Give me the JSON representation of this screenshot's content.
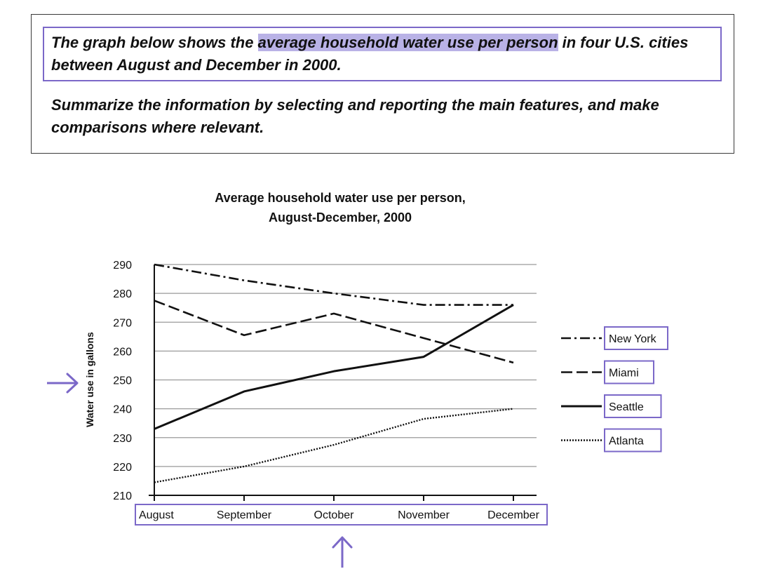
{
  "task": {
    "line1_pre": "The graph below shows the ",
    "line1_highlight": "average household water use per person",
    "line1_post": " in four U.S. cities between August and December in 2000.",
    "instruction": "Summarize the information by selecting and reporting the main features, and make comparisons where relevant."
  },
  "annotations": {
    "accent_color": "#7b68c8",
    "highlight_color": "#b9b2e6",
    "y_axis_arrow": "right-arrow-icon",
    "x_axis_arrow": "up-arrow-icon"
  },
  "chart_data": {
    "type": "line",
    "title_line1": "Average household water use per person,",
    "title_line2": "August-December, 2000",
    "xlabel": "",
    "ylabel": "Water use in gallons",
    "categories": [
      "August",
      "September",
      "October",
      "November",
      "December"
    ],
    "ylim": [
      210,
      290
    ],
    "yticks": [
      210,
      220,
      230,
      240,
      250,
      260,
      270,
      280,
      290
    ],
    "grid": true,
    "legend_position": "right",
    "series": [
      {
        "name": "New York",
        "style": "dash-dot",
        "values": [
          290,
          284.5,
          280,
          276,
          276
        ]
      },
      {
        "name": "Miami",
        "style": "dashed",
        "values": [
          277.5,
          265.5,
          273,
          264.5,
          256
        ]
      },
      {
        "name": "Seattle",
        "style": "solid",
        "values": [
          233,
          246,
          253,
          258,
          276
        ]
      },
      {
        "name": "Atlanta",
        "style": "dotted",
        "values": [
          214.5,
          220,
          227.5,
          236.5,
          240
        ]
      }
    ]
  }
}
